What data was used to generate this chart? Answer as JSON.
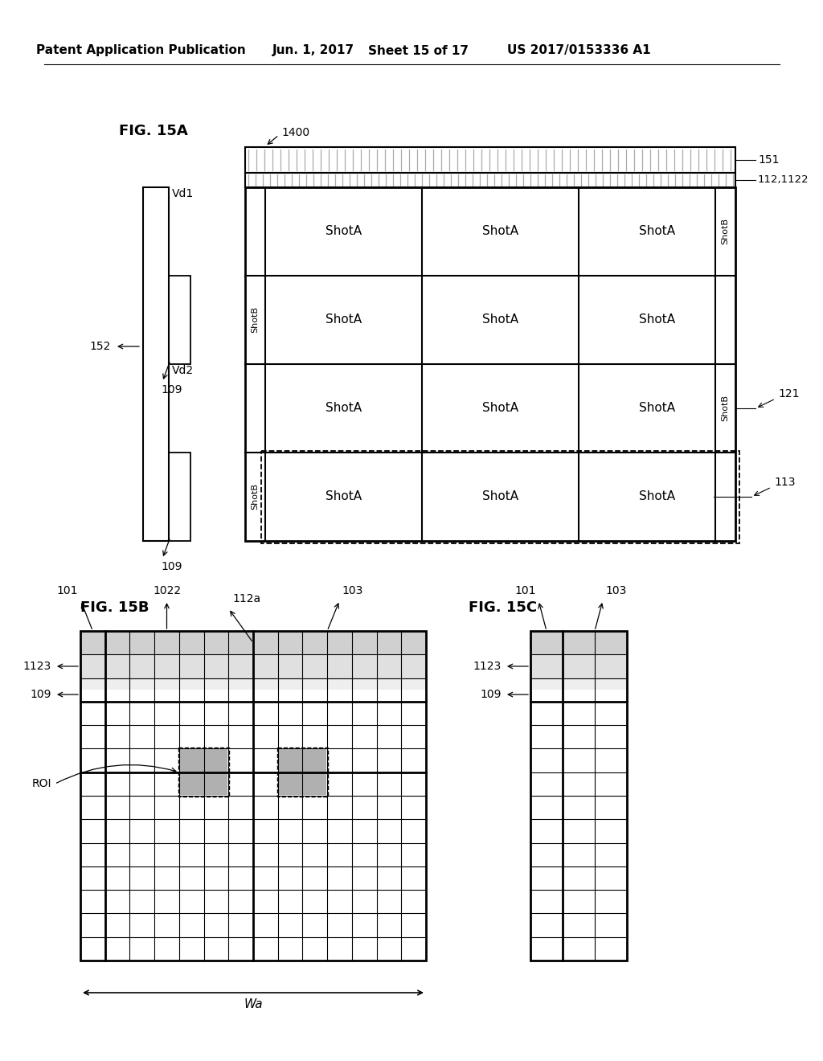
{
  "bg_color": "#ffffff",
  "line_color": "#000000",
  "header_text1": "Patent Application Publication",
  "header_text2": "Jun. 1, 2017",
  "header_text3": "Sheet 15 of 17",
  "header_text4": "US 2017/0153336 A1",
  "fig15a_label": "FIG. 15A",
  "fig15b_label": "FIG. 15B",
  "fig15c_label": "FIG. 15C"
}
